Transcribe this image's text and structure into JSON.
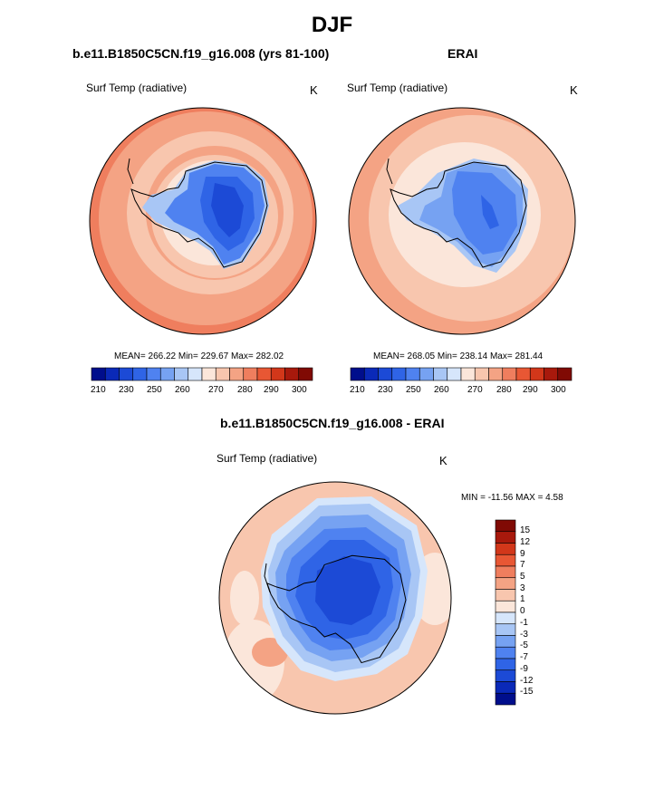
{
  "title": "DJF",
  "panels": [
    {
      "title": "b.e11.B1850C5CN.f19_g16.008 (yrs 81-100)",
      "variable": "Surf Temp (radiative)",
      "units": "K",
      "stats": "MEAN= 266.22  Min= 229.67  Max= 282.02"
    },
    {
      "title": "ERAI",
      "variable": "Surf Temp (radiative)",
      "units": "K",
      "stats": "MEAN= 268.05  Min= 238.14  Max= 281.44"
    }
  ],
  "diff_panel": {
    "title": "b.e11.B1850C5CN.f19_g16.008 - ERAI",
    "variable": "Surf Temp (radiative)",
    "units": "K",
    "stats": "MIN = -11.56 MAX =   4.58"
  },
  "colorbar_abs": {
    "colors": [
      "#000e8c",
      "#0a29b8",
      "#1c4ad6",
      "#2f64e6",
      "#4f82f0",
      "#76a2f2",
      "#a8c6f5",
      "#d6e6fb",
      "#fbe6da",
      "#f8c6ae",
      "#f4a384",
      "#ef7e5e",
      "#e85734",
      "#d2371a",
      "#a8190c",
      "#800a04"
    ],
    "tick_labels": [
      "210",
      "230",
      "250",
      "260",
      "270",
      "280",
      "290",
      "300"
    ]
  },
  "colorbar_diff": {
    "colors": [
      "#800a04",
      "#a8190c",
      "#d2371a",
      "#e85734",
      "#ef7e5e",
      "#f4a384",
      "#f8c6ae",
      "#fbe6da",
      "#d6e6fb",
      "#a8c6f5",
      "#76a2f2",
      "#4f82f0",
      "#2f64e6",
      "#1c4ad6",
      "#0a29b8",
      "#000e8c"
    ],
    "tick_labels": [
      "15",
      "12",
      "9",
      "7",
      "5",
      "3",
      "1",
      "0",
      "-1",
      "-3",
      "-5",
      "-7",
      "-9",
      "-12",
      "-15"
    ]
  }
}
